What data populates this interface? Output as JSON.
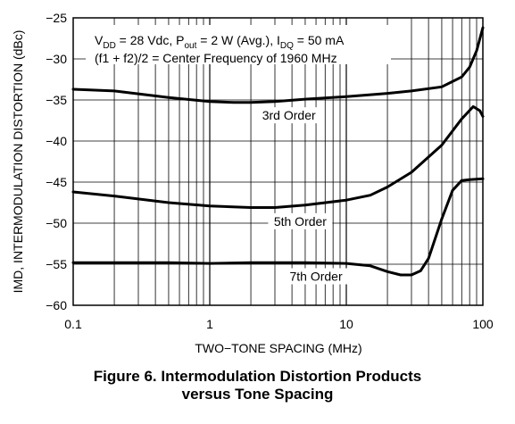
{
  "caption": {
    "line1": "Figure 6. Intermodulation Distortion Products",
    "line2": "versus Tone Spacing"
  },
  "chart_data": {
    "type": "line",
    "xlabel": "TWO−TONE SPACING (MHz)",
    "ylabel": "IMD, INTERMODULATION DISTORTION (dBc)",
    "xscale": "log",
    "xlim": [
      0.1,
      100
    ],
    "ylim": [
      -60,
      -25
    ],
    "grid": true,
    "x_ticks": [
      "0.1",
      "1",
      "10",
      "100"
    ],
    "y_ticks": [
      "-25",
      "-30",
      "-35",
      "-40",
      "-45",
      "-50",
      "-55",
      "-60"
    ],
    "conditions": {
      "vdd": {
        "sym": "V",
        "sub": "DD",
        "text": " = 28 Vdc, "
      },
      "pout": {
        "sym": "P",
        "sub": "out",
        "text": " = 2 W (Avg.), "
      },
      "idq": {
        "sym": "I",
        "sub": "DQ",
        "text": " = 50 mA"
      },
      "line2": "(f1 + f2)/2 = Center Frequency of 1960 MHz"
    },
    "series": [
      {
        "name": "3rd Order",
        "x": [
          0.1,
          0.2,
          0.5,
          1,
          1.5,
          2,
          3,
          5,
          10,
          20,
          30,
          50,
          70,
          80,
          90,
          100
        ],
        "y": [
          -33.7,
          -33.9,
          -34.7,
          -35.2,
          -35.3,
          -35.3,
          -35.2,
          -34.9,
          -34.6,
          -34.2,
          -33.9,
          -33.4,
          -32.2,
          -31,
          -29,
          -26.2
        ]
      },
      {
        "name": "5th Order",
        "x": [
          0.1,
          0.2,
          0.5,
          1,
          2,
          3,
          5,
          10,
          15,
          20,
          30,
          50,
          70,
          85,
          95,
          100
        ],
        "y": [
          -46.2,
          -46.7,
          -47.5,
          -47.9,
          -48.1,
          -48.1,
          -47.8,
          -47.2,
          -46.6,
          -45.6,
          -43.8,
          -40.5,
          -37.3,
          -35.8,
          -36.3,
          -37
        ]
      },
      {
        "name": "7th Order",
        "x": [
          0.1,
          0.2,
          0.5,
          1,
          2,
          5,
          10,
          15,
          20,
          25,
          30,
          35,
          40,
          50,
          60,
          70,
          80,
          100
        ],
        "y": [
          -54.8,
          -54.8,
          -54.8,
          -54.9,
          -54.8,
          -54.8,
          -54.9,
          -55.2,
          -55.9,
          -56.3,
          -56.3,
          -55.8,
          -54.3,
          -49.5,
          -46,
          -44.8,
          -44.7,
          -44.6
        ]
      }
    ]
  }
}
